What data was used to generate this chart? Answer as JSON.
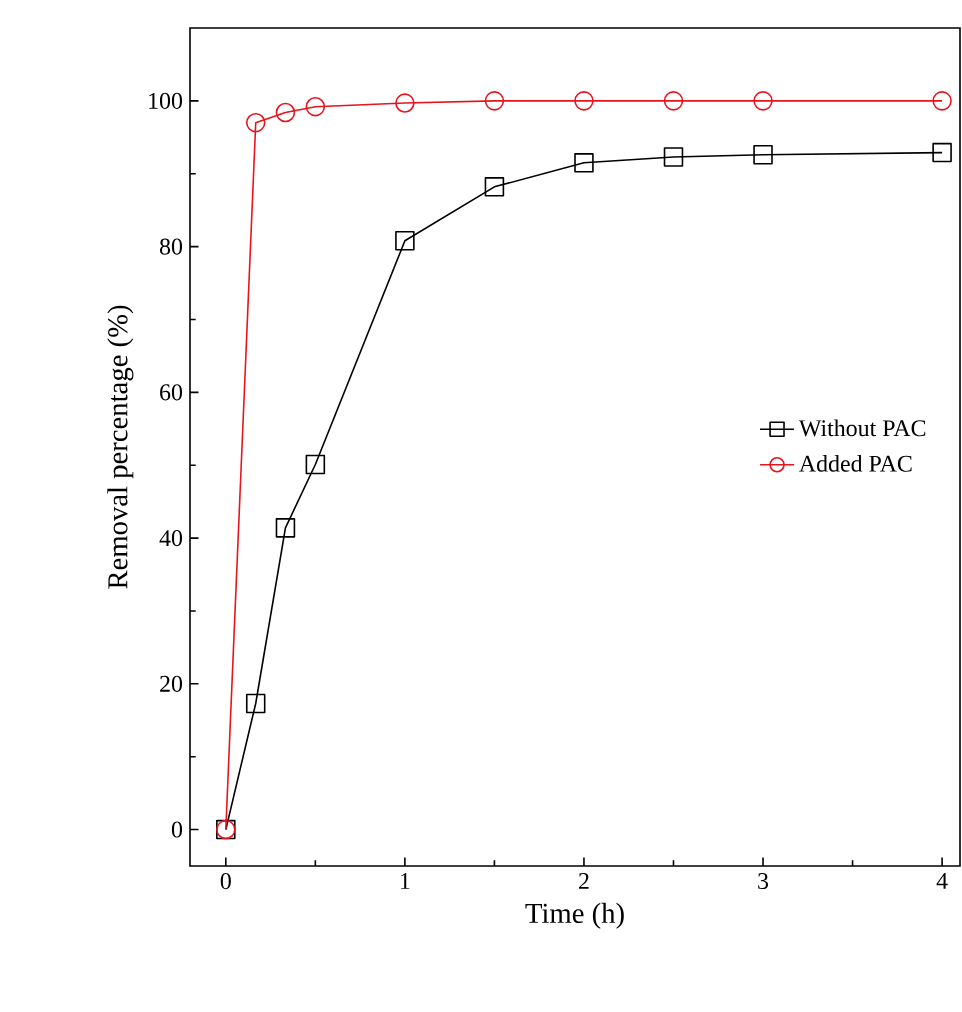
{
  "chart_data": {
    "type": "line",
    "xlabel": "Time (h)",
    "ylabel": "Removal percentage (%)",
    "xlim": [
      -0.2,
      4.1
    ],
    "ylim": [
      -5,
      110
    ],
    "xticks": [
      0,
      1,
      2,
      3,
      4
    ],
    "yticks": [
      0,
      20,
      40,
      60,
      80,
      100
    ],
    "grid": false,
    "legend": "right",
    "series": [
      {
        "name": "Without PAC",
        "color": "#000000",
        "marker": "square",
        "x": [
          0,
          0.167,
          0.333,
          0.5,
          1,
          1.5,
          2,
          2.5,
          3,
          4
        ],
        "values": [
          0,
          17.3,
          41.4,
          50.1,
          80.8,
          88.2,
          91.5,
          92.3,
          92.6,
          92.9
        ]
      },
      {
        "name": "Added PAC",
        "color": "#e8141c",
        "marker": "circle",
        "x": [
          0,
          0.167,
          0.333,
          0.5,
          1,
          1.5,
          2,
          2.5,
          3,
          4
        ],
        "values": [
          0,
          97,
          98.4,
          99.2,
          99.7,
          100,
          100,
          100,
          100,
          100
        ]
      }
    ]
  }
}
